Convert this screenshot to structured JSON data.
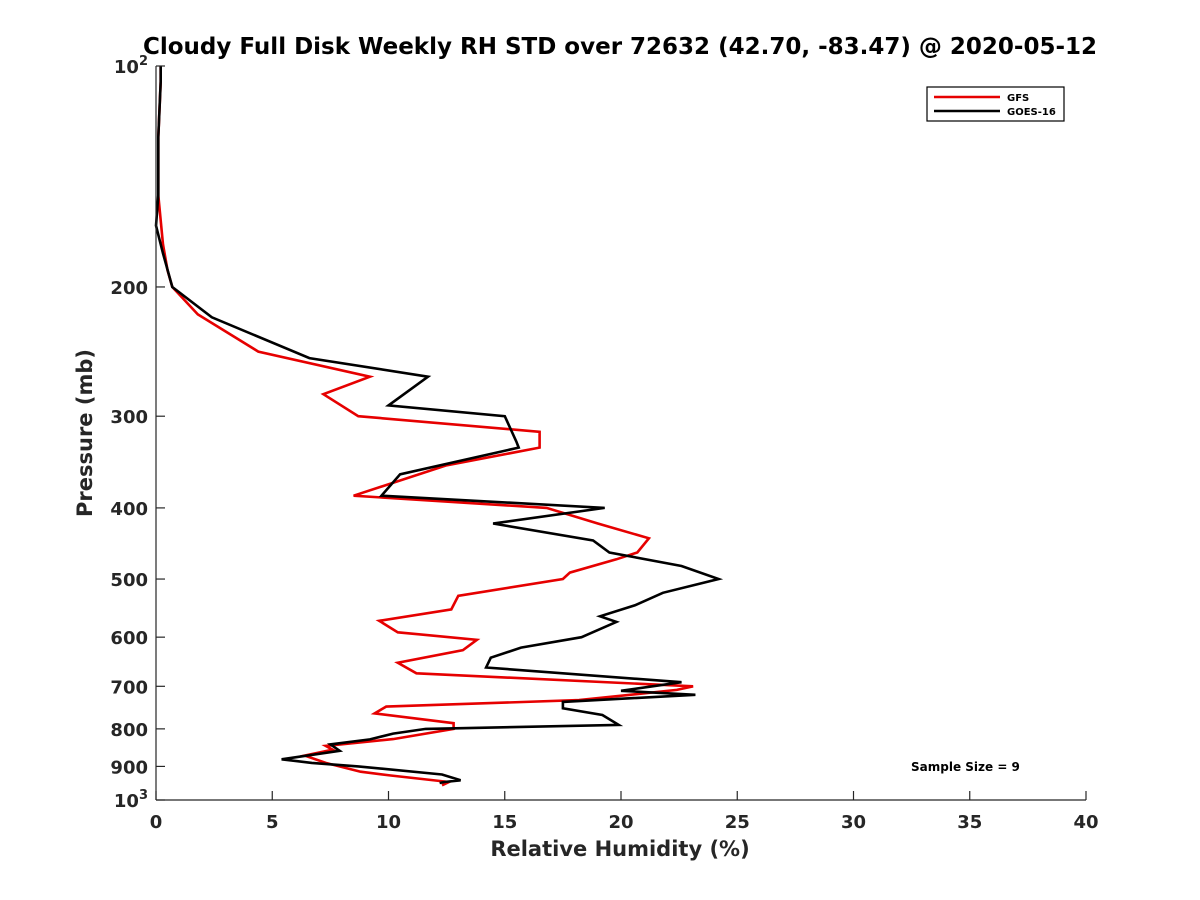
{
  "chart_data": {
    "type": "line",
    "title": "Cloudy Full Disk Weekly RH STD over 72632 (42.70, -83.47) @ 2020-05-12",
    "xlabel": "Relative Humidity (%)",
    "ylabel": "Pressure (mb)",
    "xlim": [
      0,
      40
    ],
    "ylim": [
      100,
      1000
    ],
    "y_scale": "log",
    "y_reversed": true,
    "grid": false,
    "legend_position": "top-right",
    "x_ticks": [
      0,
      5,
      10,
      15,
      20,
      25,
      30,
      35,
      40
    ],
    "x_tick_labels": [
      "0",
      "5",
      "10",
      "15",
      "20",
      "25",
      "30",
      "35",
      "40"
    ],
    "y_ticks": [
      100,
      200,
      300,
      400,
      500,
      600,
      700,
      800,
      900,
      1000
    ],
    "y_tick_labels": [
      {
        "base": "10",
        "exp": "2"
      },
      {
        "base": "200",
        "exp": ""
      },
      {
        "base": "300",
        "exp": ""
      },
      {
        "base": "400",
        "exp": ""
      },
      {
        "base": "500",
        "exp": ""
      },
      {
        "base": "600",
        "exp": ""
      },
      {
        "base": "700",
        "exp": ""
      },
      {
        "base": "800",
        "exp": ""
      },
      {
        "base": "900",
        "exp": ""
      },
      {
        "base": "10",
        "exp": "3"
      }
    ],
    "series": [
      {
        "name": "GFS",
        "color": "#e60000",
        "points": [
          [
            0.2,
            100
          ],
          [
            0.2,
            105
          ],
          [
            0.1,
            125
          ],
          [
            0.1,
            150
          ],
          [
            0.3,
            175
          ],
          [
            0.5,
            190
          ],
          [
            0.7,
            200
          ],
          [
            1.8,
            218
          ],
          [
            4.4,
            245
          ],
          [
            9.2,
            265
          ],
          [
            7.2,
            280
          ],
          [
            8.7,
            300
          ],
          [
            16.5,
            315
          ],
          [
            16.5,
            331
          ],
          [
            12.5,
            350
          ],
          [
            8.5,
            385
          ],
          [
            16.8,
            400
          ],
          [
            19.0,
            420
          ],
          [
            21.2,
            440
          ],
          [
            20.7,
            460
          ],
          [
            19.8,
            470
          ],
          [
            17.8,
            490
          ],
          [
            17.5,
            500
          ],
          [
            13.0,
            527
          ],
          [
            12.7,
            550
          ],
          [
            9.6,
            570
          ],
          [
            10.4,
            591
          ],
          [
            13.8,
            605
          ],
          [
            13.2,
            625
          ],
          [
            10.4,
            650
          ],
          [
            11.2,
            672
          ],
          [
            23.1,
            700
          ],
          [
            22.4,
            708
          ],
          [
            18.2,
            731
          ],
          [
            9.9,
            746
          ],
          [
            9.4,
            762
          ],
          [
            12.8,
            786
          ],
          [
            12.8,
            800
          ],
          [
            10.2,
            826
          ],
          [
            7.3,
            844
          ],
          [
            7.6,
            854
          ],
          [
            6.4,
            870
          ],
          [
            7.3,
            890
          ],
          [
            8.8,
            915
          ],
          [
            10.1,
            926
          ],
          [
            12.6,
            945
          ],
          [
            12.3,
            955
          ]
        ]
      },
      {
        "name": "GOES-16",
        "color": "#000000",
        "points": [
          [
            0.2,
            100
          ],
          [
            0.2,
            105
          ],
          [
            0.1,
            125
          ],
          [
            0.1,
            150
          ],
          [
            0.0,
            165
          ],
          [
            0.3,
            180
          ],
          [
            0.7,
            200
          ],
          [
            2.4,
            220
          ],
          [
            6.6,
            250
          ],
          [
            11.7,
            265
          ],
          [
            10.0,
            290
          ],
          [
            15.0,
            300
          ],
          [
            15.5,
            325
          ],
          [
            15.6,
            331
          ],
          [
            10.5,
            360
          ],
          [
            9.7,
            385
          ],
          [
            19.3,
            400
          ],
          [
            14.5,
            420
          ],
          [
            18.8,
            443
          ],
          [
            19.5,
            460
          ],
          [
            22.6,
            480
          ],
          [
            24.2,
            500
          ],
          [
            21.8,
            522
          ],
          [
            20.6,
            543
          ],
          [
            19.1,
            562
          ],
          [
            19.8,
            572
          ],
          [
            18.3,
            600
          ],
          [
            15.7,
            620
          ],
          [
            14.4,
            640
          ],
          [
            14.2,
            660
          ],
          [
            22.6,
            691
          ],
          [
            20.0,
            710
          ],
          [
            23.2,
            719
          ],
          [
            17.5,
            735
          ],
          [
            17.5,
            750
          ],
          [
            19.2,
            766
          ],
          [
            19.9,
            790
          ],
          [
            11.6,
            800
          ],
          [
            10.2,
            812
          ],
          [
            9.2,
            827
          ],
          [
            7.5,
            840
          ],
          [
            7.9,
            857
          ],
          [
            5.4,
            880
          ],
          [
            6.7,
            890
          ],
          [
            8.7,
            900
          ],
          [
            12.3,
            923
          ],
          [
            13.1,
            940
          ],
          [
            12.4,
            945
          ],
          [
            12.2,
            948
          ]
        ]
      }
    ],
    "annotations": [
      {
        "text": "Sample Size = 9",
        "position": "lower-right"
      }
    ]
  }
}
